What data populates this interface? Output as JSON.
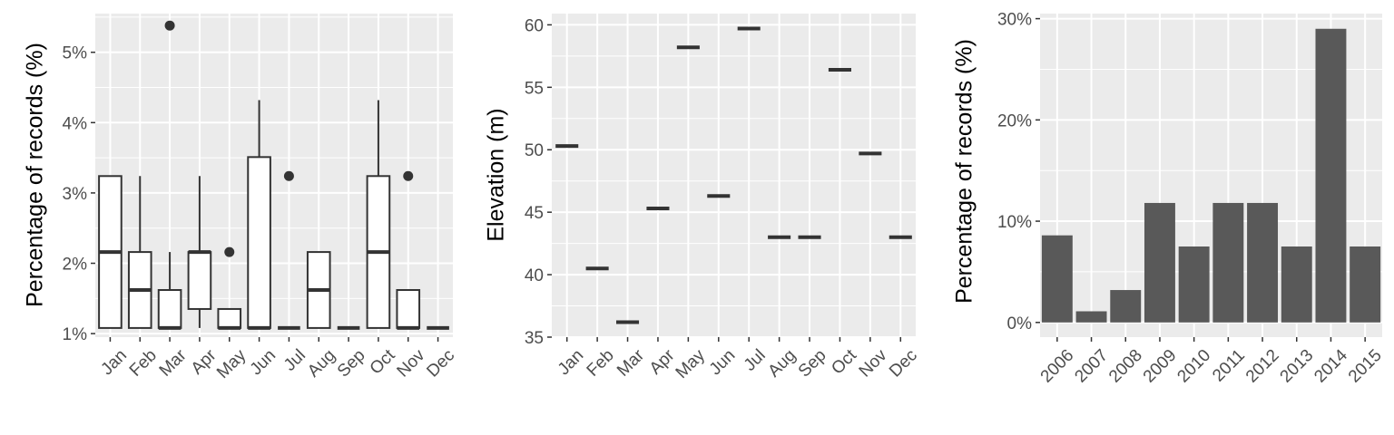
{
  "colors": {
    "panel_bg": "#ebebeb",
    "grid": "#ffffff",
    "tick_text": "#4d4d4d",
    "axis_title": "#000000",
    "box_fill": "#ffffff",
    "box_stroke": "#333333",
    "outlier": "#333333",
    "bar_fill": "#595959"
  },
  "chart_data": [
    {
      "type": "boxplot",
      "title": "",
      "xlabel": "",
      "ylabel": "Percentage of records (%)",
      "categories": [
        "Jan",
        "Feb",
        "Mar",
        "Apr",
        "May",
        "Jun",
        "Jul",
        "Aug",
        "Sep",
        "Oct",
        "Nov",
        "Dec"
      ],
      "ylim": [
        0.95,
        5.55
      ],
      "yticks": [
        1,
        2,
        3,
        4,
        5
      ],
      "ytick_labels": [
        "1%",
        "2%",
        "3%",
        "4%",
        "5%"
      ],
      "grid": true,
      "boxes": [
        {
          "min": 1.08,
          "q1": 1.08,
          "median": 2.16,
          "q3": 3.24,
          "max": 3.24,
          "outliers": []
        },
        {
          "min": 1.08,
          "q1": 1.08,
          "median": 1.62,
          "q3": 2.16,
          "max": 3.24,
          "outliers": []
        },
        {
          "min": 1.08,
          "q1": 1.08,
          "median": 1.08,
          "q3": 1.62,
          "max": 2.16,
          "outliers": [
            5.38
          ]
        },
        {
          "min": 1.08,
          "q1": 1.35,
          "median": 2.16,
          "q3": 2.16,
          "max": 3.24,
          "outliers": []
        },
        {
          "min": 1.08,
          "q1": 1.08,
          "median": 1.08,
          "q3": 1.35,
          "max": 1.35,
          "outliers": [
            2.16
          ]
        },
        {
          "min": 1.08,
          "q1": 1.08,
          "median": 1.08,
          "q3": 3.51,
          "max": 4.32,
          "outliers": []
        },
        {
          "min": 1.08,
          "q1": 1.08,
          "median": 1.08,
          "q3": 1.08,
          "max": 1.08,
          "outliers": [
            3.24
          ]
        },
        {
          "min": 1.08,
          "q1": 1.08,
          "median": 1.62,
          "q3": 2.16,
          "max": 2.16,
          "outliers": []
        },
        {
          "min": 1.08,
          "q1": 1.08,
          "median": 1.08,
          "q3": 1.08,
          "max": 1.08,
          "outliers": []
        },
        {
          "min": 1.08,
          "q1": 1.08,
          "median": 2.16,
          "q3": 3.24,
          "max": 4.32,
          "outliers": []
        },
        {
          "min": 1.08,
          "q1": 1.08,
          "median": 1.08,
          "q3": 1.62,
          "max": 1.62,
          "outliers": [
            3.24
          ]
        },
        {
          "min": 1.08,
          "q1": 1.08,
          "median": 1.08,
          "q3": 1.08,
          "max": 1.08,
          "outliers": []
        }
      ]
    },
    {
      "type": "boxplot",
      "title": "",
      "xlabel": "",
      "ylabel": "Elevation (m)",
      "categories": [
        "Jan",
        "Feb",
        "Mar",
        "Apr",
        "May",
        "Jun",
        "Jul",
        "Aug",
        "Sep",
        "Oct",
        "Nov",
        "Dec"
      ],
      "ylim": [
        35,
        60.9
      ],
      "yticks": [
        35,
        40,
        45,
        50,
        55,
        60
      ],
      "ytick_labels": [
        "35",
        "40",
        "45",
        "50",
        "55",
        "60"
      ],
      "grid": true,
      "values": [
        50.3,
        40.5,
        36.2,
        45.3,
        58.2,
        46.3,
        59.7,
        43.0,
        43.0,
        56.4,
        49.7,
        43.0
      ]
    },
    {
      "type": "bar",
      "title": "",
      "xlabel": "",
      "ylabel": "Percentage of records (%)",
      "categories": [
        "2006",
        "2007",
        "2008",
        "2009",
        "2010",
        "2011",
        "2012",
        "2013",
        "2014",
        "2015"
      ],
      "values": [
        8.6,
        1.1,
        3.2,
        11.8,
        7.5,
        11.8,
        11.8,
        7.5,
        29.0,
        7.5
      ],
      "ylim": [
        -1.45,
        30.5
      ],
      "yticks": [
        0,
        10,
        20,
        30
      ],
      "ytick_labels": [
        "0%",
        "10%",
        "20%",
        "30%"
      ],
      "grid": true
    }
  ]
}
